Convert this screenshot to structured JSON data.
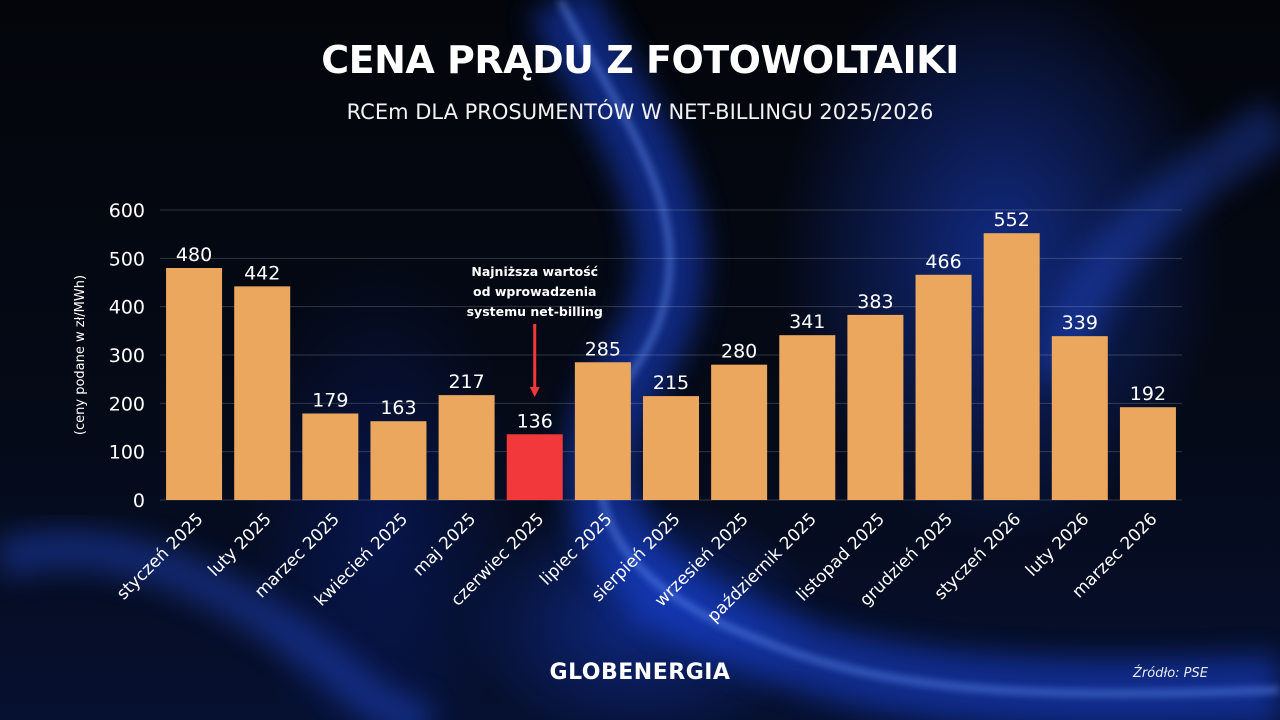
{
  "header": {
    "title": "CENA PRĄDU Z FOTOWOLTAIKI",
    "subtitle": "RCEm DLA PROSUMENTÓW W NET-BILLINGU 2025/2026"
  },
  "chart_data": {
    "type": "bar",
    "title": "CENA PRĄDU Z FOTOWOLTAIKI",
    "subtitle": "RCEm DLA PROSUMENTÓW W NET-BILLINGU 2025/2026",
    "ylabel": "(ceny podane w zł/MWh)",
    "xlabel": "",
    "ylim": [
      0,
      600
    ],
    "yticks": [
      0,
      100,
      200,
      300,
      400,
      500,
      600
    ],
    "grid": true,
    "categories": [
      "styczeń 2025",
      "luty 2025",
      "marzec 2025",
      "kwiecień 2025",
      "maj 2025",
      "czerwiec 2025",
      "lipiec 2025",
      "sierpień 2025",
      "wrzesień 2025",
      "październik 2025",
      "listopad 2025",
      "grudzień 2025",
      "styczeń 2026",
      "luty 2026",
      "marzec 2026"
    ],
    "values": [
      480,
      442,
      179,
      163,
      217,
      136,
      285,
      215,
      280,
      341,
      383,
      466,
      552,
      339,
      192
    ],
    "bar_color": "#eca75f",
    "highlight": {
      "index": 5,
      "color": "#f2383a"
    },
    "annotation": {
      "lines": [
        "Najniższa wartość",
        "od wprowadzenia",
        "systemu net-billing"
      ],
      "arrow_color": "#f2383a"
    }
  },
  "footer": {
    "brand": "GLOBENERGIA",
    "source": "Źródło: PSE"
  }
}
